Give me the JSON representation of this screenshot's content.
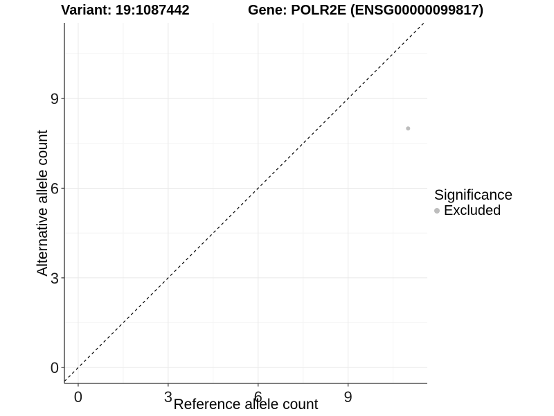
{
  "chart_data": {
    "type": "scatter",
    "titles": {
      "left": "Variant: 19:1087442",
      "right": "Gene: POLR2E (ENSG00000099817)"
    },
    "xlabel": "Reference allele count",
    "ylabel": "Alternative allele count",
    "xlim": [
      -0.46,
      11.64
    ],
    "ylim": [
      -0.53,
      11.53
    ],
    "xticks": [
      0,
      3,
      6,
      9
    ],
    "yticks": [
      0,
      3,
      6,
      9
    ],
    "grid": {
      "major": true,
      "minor": true
    },
    "identity_line": {
      "slope": 1,
      "intercept": 0,
      "style": "dashed"
    },
    "series": [
      {
        "name": "Excluded",
        "color": "#bdbdbd",
        "points": [
          {
            "x": 11,
            "y": 8
          }
        ]
      }
    ],
    "legend": {
      "title": "Significance",
      "position": "right",
      "items": [
        {
          "label": "Excluded",
          "color": "#bdbdbd"
        }
      ]
    },
    "colors": {
      "grid_major": "#e8e8e8",
      "grid_minor": "#f4f4f4",
      "axis": "#333333",
      "tick_mark": "#333333",
      "tick_text": "#1a1a1a",
      "identity": "#000000",
      "background": "#ffffff"
    }
  }
}
